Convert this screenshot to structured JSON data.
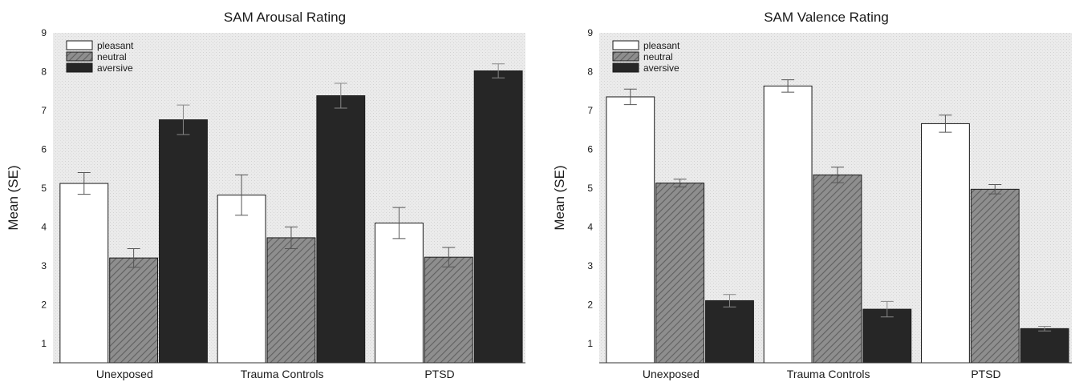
{
  "chart_data": [
    {
      "type": "bar",
      "title": "SAM Arousal Rating",
      "ylabel": "Mean (SE)",
      "xlabel": "",
      "categories": [
        "Unexposed",
        "Trauma Controls",
        "PTSD"
      ],
      "yticks": [
        "1",
        "2",
        "3",
        "4",
        "5",
        "6",
        "7",
        "8",
        "9"
      ],
      "ylim": [
        0.5,
        9
      ],
      "legend_position": "top-left",
      "grid": false,
      "series": [
        {
          "name": "pleasant",
          "values": [
            5.12,
            4.82,
            4.1
          ],
          "se": [
            0.28,
            0.52,
            0.4
          ],
          "color": "#ffffff"
        },
        {
          "name": "neutral",
          "values": [
            3.2,
            3.72,
            3.22
          ],
          "se": [
            0.24,
            0.28,
            0.25
          ],
          "color": "#8c8c8c"
        },
        {
          "name": "aversive",
          "values": [
            6.76,
            7.38,
            8.02
          ],
          "se": [
            0.38,
            0.32,
            0.18
          ],
          "color": "#262626"
        }
      ]
    },
    {
      "type": "bar",
      "title": "SAM Valence Rating",
      "ylabel": "Mean (SE)",
      "xlabel": "",
      "categories": [
        "Unexposed",
        "Trauma Controls",
        "PTSD"
      ],
      "yticks": [
        "1",
        "2",
        "3",
        "4",
        "5",
        "6",
        "7",
        "8",
        "9"
      ],
      "ylim": [
        0.5,
        9
      ],
      "legend_position": "top-left",
      "grid": false,
      "series": [
        {
          "name": "pleasant",
          "values": [
            7.35,
            7.63,
            6.66
          ],
          "se": [
            0.2,
            0.16,
            0.22
          ],
          "color": "#ffffff"
        },
        {
          "name": "neutral",
          "values": [
            5.13,
            5.34,
            4.97
          ],
          "se": [
            0.1,
            0.2,
            0.12
          ],
          "color": "#8c8c8c"
        },
        {
          "name": "aversive",
          "values": [
            2.1,
            1.88,
            1.38
          ],
          "se": [
            0.16,
            0.2,
            0.06
          ],
          "color": "#262626"
        }
      ]
    }
  ]
}
